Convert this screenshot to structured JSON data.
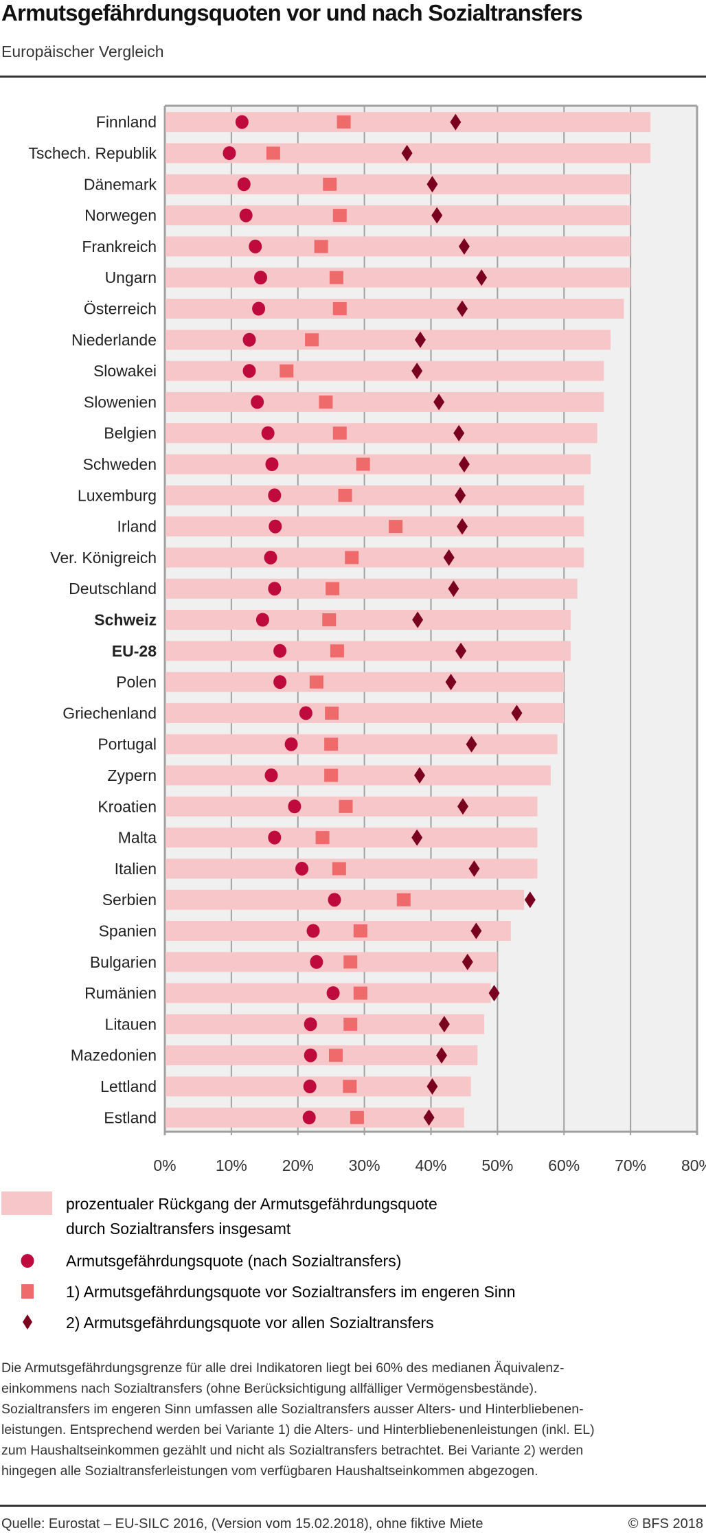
{
  "header": {
    "title": "Armutsgefährdungsquoten vor und nach Sozialtransfers",
    "subtitle": "Europäischer Vergleich"
  },
  "chart_data": {
    "type": "bar",
    "orientation": "horizontal",
    "title": "Armutsgefährdungsquoten vor und nach Sozialtransfers",
    "subtitle": "Europäischer Vergleich",
    "xlim": [
      0,
      80
    ],
    "x_ticks": [
      "0%",
      "10%",
      "20%",
      "30%",
      "40%",
      "50%",
      "60%",
      "70%",
      "80%"
    ],
    "grid": true,
    "legend_position": "bottom",
    "categories": [
      "Finnland",
      "Tschech. Republik",
      "Dänemark",
      "Norwegen",
      "Frankreich",
      "Ungarn",
      "Österreich",
      "Niederlande",
      "Slowakei",
      "Slowenien",
      "Belgien",
      "Schweden",
      "Luxemburg",
      "Irland",
      "Ver. Königreich",
      "Deutschland",
      "Schweiz",
      "EU-28",
      "Polen",
      "Griechenland",
      "Portugal",
      "Zypern",
      "Kroatien",
      "Malta",
      "Italien",
      "Serbien",
      "Spanien",
      "Bulgarien",
      "Rumänien",
      "Litauen",
      "Mazedonien",
      "Lettland",
      "Estland"
    ],
    "bold_categories": [
      "Schweiz",
      "EU-28"
    ],
    "series": [
      {
        "name": "prozentualer Rückgang der Armutsgefährdungsquote durch Sozialtransfers insgesamt",
        "marker": "bar",
        "color": "#f7c6c9",
        "values": [
          73,
          73,
          70,
          70,
          70,
          70,
          69,
          67,
          66,
          66,
          65,
          64,
          63,
          63,
          63,
          62,
          61,
          61,
          60,
          60,
          59,
          58,
          56,
          56,
          56,
          54,
          52,
          50,
          49,
          48,
          47,
          46,
          45
        ]
      },
      {
        "name": "Armutsgefährdungsquote (nach Sozialtransfers)",
        "marker": "circle",
        "color": "#be0a3c",
        "values": [
          11.6,
          9.7,
          11.9,
          12.2,
          13.6,
          14.4,
          14.1,
          12.7,
          12.7,
          13.9,
          15.5,
          16.1,
          16.5,
          16.6,
          15.9,
          16.5,
          14.7,
          17.3,
          17.3,
          21.2,
          19.0,
          16.0,
          19.5,
          16.5,
          20.6,
          25.5,
          22.3,
          22.8,
          25.3,
          21.9,
          21.9,
          21.8,
          21.7
        ]
      },
      {
        "name": "1) Armutsgefährdungsquote vor Sozialtransfers im engeren Sinn",
        "marker": "square",
        "color": "#ee6a6b",
        "values": [
          26.9,
          16.3,
          24.8,
          26.3,
          23.5,
          25.8,
          26.3,
          22.1,
          18.3,
          24.2,
          26.3,
          29.8,
          27.1,
          34.7,
          28.1,
          25.2,
          24.7,
          25.9,
          22.8,
          25.1,
          25.0,
          25.0,
          27.2,
          23.7,
          26.2,
          35.9,
          29.4,
          27.9,
          29.4,
          27.9,
          25.7,
          27.8,
          28.9
        ]
      },
      {
        "name": "2) Armutsgefährdungsquote vor allen Sozialtransfers",
        "marker": "diamond",
        "color": "#7a0020",
        "values": [
          43.7,
          36.4,
          40.2,
          40.9,
          45.0,
          47.6,
          44.7,
          38.4,
          37.9,
          41.2,
          44.2,
          45.0,
          44.4,
          44.7,
          42.7,
          43.4,
          38.0,
          44.5,
          43.0,
          52.9,
          46.1,
          38.3,
          44.8,
          37.9,
          46.5,
          54.9,
          46.8,
          45.5,
          49.5,
          42.0,
          41.6,
          40.2,
          39.7
        ]
      }
    ]
  },
  "legend": {
    "bar_line1": "prozentualer Rückgang der Armutsgefährdungsquote",
    "bar_line2": "durch Sozialtransfers insgesamt",
    "circle": "Armutsgefährdungsquote (nach Sozialtransfers)",
    "square": "1) Armutsgefährdungsquote vor Sozialtransfers im engeren Sinn",
    "diamond": "2) Armutsgefährdungsquote vor allen Sozialtransfers"
  },
  "footnote": [
    "Die Armutsgefährdungsgrenze für alle drei Indikatoren liegt bei 60% des medianen Äquivalenz-",
    "einkommens nach Sozialtransfers (ohne Berücksichtigung allfälliger Vermögensbestände).",
    "Sozialtransfers im engeren Sinn umfassen alle Sozialtransfers ausser Alters- und Hinterbliebenen-",
    "leistungen. Entsprechend werden bei Variante 1) die Alters- und Hinterbliebenenleistungen (inkl. EL)",
    "zum Haushaltseinkommen gezählt und nicht als Sozialtransfers betrachtet. Bei Variante 2) werden",
    "hingegen alle Sozialtransferleistungen vom verfügbaren Haushaltseinkommen abgezogen."
  ],
  "source": "Quelle: Eurostat – EU-SILC 2016, (Version vom 15.02.2018), ohne fiktive Miete",
  "copyright": "© BFS 2018",
  "colors": {
    "bar": "#f7c6c9",
    "circle": "#be0a3c",
    "square": "#ee6a6b",
    "diamond": "#7a0020",
    "plot_background": "#f0f0f0",
    "grid": "#a0a0a0"
  }
}
